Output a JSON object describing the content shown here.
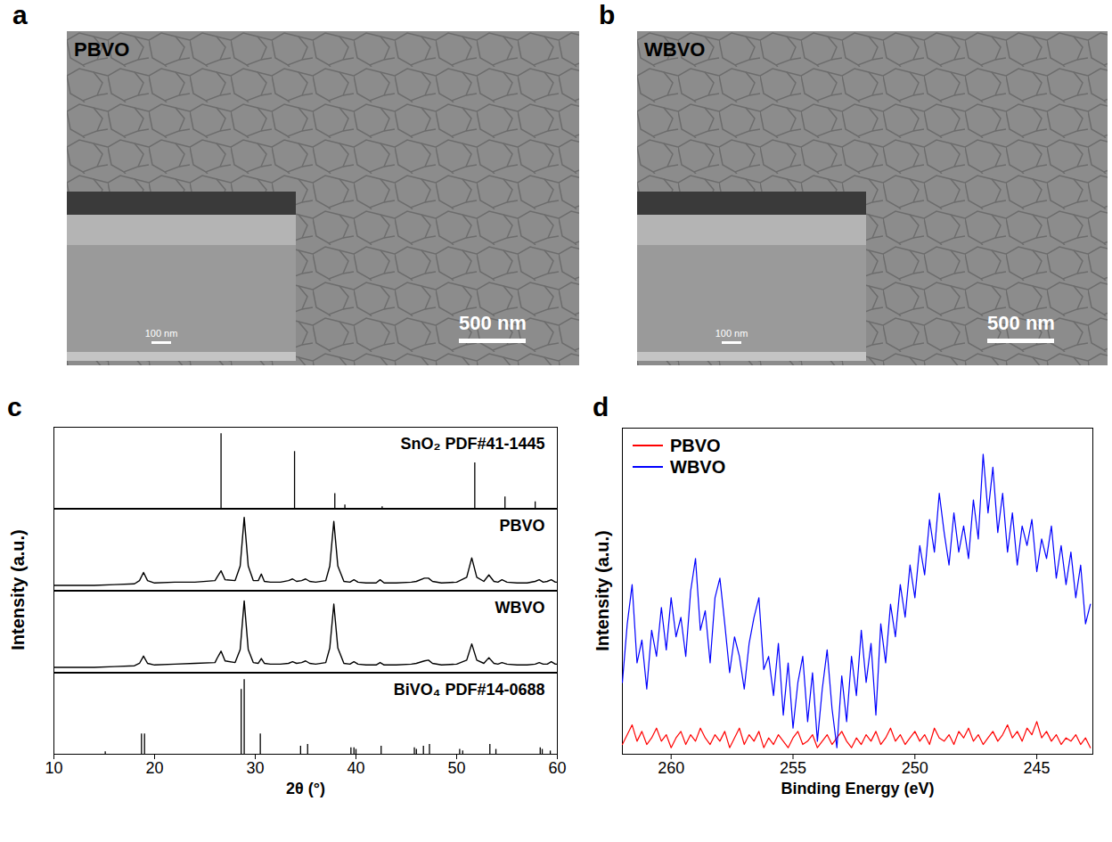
{
  "images": [
    {
      "panel": "a",
      "label": "PBVO",
      "scale_bar": "500 nm",
      "inset_scale_bar": "100 nm"
    },
    {
      "panel": "b",
      "label": "WBVO",
      "scale_bar": "500 nm",
      "inset_scale_bar": "100 nm"
    }
  ],
  "chart_data": [
    {
      "panel": "c",
      "type": "line",
      "xlabel": "2θ (°)",
      "ylabel": "Intensity (a.u.)",
      "xlim": [
        10,
        60
      ],
      "xticks": [
        10,
        20,
        30,
        40,
        50,
        60
      ],
      "ylim": [
        0,
        100
      ],
      "tick_labels": "x",
      "series": [
        {
          "name": "SnO₂ PDF#41-1445",
          "type": "bar",
          "color": "#000000",
          "x": [
            26.6,
            33.9,
            37.9,
            38.9,
            42.6,
            51.8,
            54.8,
            57.8
          ],
          "values": [
            92,
            70,
            18,
            4,
            2,
            56,
            14,
            8
          ]
        },
        {
          "name": "PBVO",
          "type": "line",
          "color": "#000000",
          "x": [
            10,
            12,
            14,
            16,
            18,
            18.5,
            18.9,
            19.3,
            20,
            22,
            24,
            26,
            26.2,
            26.6,
            27,
            28,
            28.5,
            28.9,
            29.3,
            29.8,
            30.3,
            30.6,
            30.9,
            31.5,
            32.5,
            33.3,
            33.7,
            34.1,
            34.6,
            35.0,
            35.4,
            36,
            37,
            37.4,
            37.8,
            38.2,
            38.8,
            39.4,
            39.8,
            40.2,
            41,
            42,
            42.4,
            42.8,
            44,
            45.5,
            46,
            46.8,
            47.2,
            47.6,
            48.5,
            50,
            51,
            51.5,
            52,
            52.7,
            53.2,
            53.7,
            54.1,
            54.5,
            55,
            56,
            57,
            57.8,
            58.2,
            58.6,
            59,
            59.4,
            59.8,
            60
          ],
          "values": [
            6,
            6,
            6,
            7,
            8,
            12,
            22,
            12,
            9,
            10,
            10,
            12,
            16,
            24,
            13,
            12,
            30,
            90,
            30,
            12,
            12,
            20,
            11,
            10,
            10,
            12,
            14,
            11,
            12,
            14,
            11,
            10,
            12,
            30,
            85,
            30,
            11,
            10,
            13,
            10,
            9,
            9,
            13,
            9,
            9,
            10,
            11,
            15,
            15,
            11,
            9,
            10,
            16,
            40,
            16,
            11,
            19,
            11,
            10,
            13,
            10,
            9,
            9,
            11,
            13,
            10,
            11,
            13,
            10,
            10
          ]
        },
        {
          "name": "WBVO",
          "type": "line",
          "color": "#000000",
          "x": [
            10,
            12,
            14,
            16,
            18,
            18.5,
            18.9,
            19.3,
            20,
            22,
            24,
            26,
            26.2,
            26.6,
            27,
            28,
            28.5,
            28.9,
            29.3,
            29.8,
            30.3,
            30.6,
            30.9,
            31.5,
            32.5,
            33.3,
            33.7,
            34.1,
            34.6,
            35.0,
            35.4,
            36,
            37,
            37.4,
            37.8,
            38.2,
            38.8,
            39.4,
            39.8,
            40.2,
            41,
            42,
            42.4,
            42.8,
            44,
            45.5,
            46,
            46.8,
            47.2,
            47.6,
            48.5,
            50,
            51,
            51.5,
            52,
            52.7,
            53.2,
            53.7,
            54.1,
            54.5,
            55,
            56,
            57,
            57.8,
            58.2,
            58.6,
            59,
            59.4,
            59.8,
            60
          ],
          "values": [
            6,
            6,
            6,
            7,
            8,
            11,
            20,
            11,
            9,
            10,
            11,
            12,
            17,
            26,
            14,
            12,
            28,
            88,
            28,
            12,
            11,
            17,
            11,
            10,
            10,
            11,
            13,
            11,
            12,
            14,
            11,
            10,
            12,
            30,
            84,
            30,
            11,
            10,
            13,
            10,
            9,
            9,
            12,
            9,
            9,
            10,
            11,
            14,
            15,
            11,
            9,
            10,
            15,
            35,
            15,
            11,
            18,
            11,
            10,
            12,
            10,
            9,
            9,
            10,
            12,
            10,
            10,
            13,
            10,
            10
          ]
        },
        {
          "name": "BiVO₄ PDF#14-0688",
          "type": "bar",
          "color": "#000000",
          "x": [
            15.1,
            18.7,
            19.0,
            28.6,
            28.9,
            30.5,
            34.5,
            35.2,
            39.5,
            39.8,
            40.0,
            42.5,
            45.8,
            46.0,
            46.7,
            47.3,
            50.3,
            50.6,
            53.3,
            53.9,
            58.3,
            58.5,
            59.3
          ],
          "values": [
            3,
            25,
            25,
            80,
            92,
            25,
            10,
            12,
            8,
            8,
            6,
            10,
            8,
            6,
            10,
            12,
            6,
            4,
            12,
            6,
            8,
            6,
            4
          ]
        }
      ]
    },
    {
      "panel": "d",
      "type": "line",
      "xlabel": "Binding Energy (eV)",
      "ylabel": "Intensity (a.u.)",
      "xlim": [
        262,
        242.7
      ],
      "xticks": [
        260,
        255,
        250,
        245
      ],
      "ylim": [
        0,
        100
      ],
      "tick_labels": "x",
      "legend": "top-left",
      "x": [
        262,
        261.8,
        261.6,
        261.4,
        261.2,
        261,
        260.8,
        260.6,
        260.4,
        260.2,
        260,
        259.8,
        259.6,
        259.4,
        259.2,
        259,
        258.8,
        258.6,
        258.4,
        258.2,
        258,
        257.8,
        257.6,
        257.4,
        257.2,
        257,
        256.8,
        256.6,
        256.4,
        256.2,
        256,
        255.8,
        255.6,
        255.4,
        255.2,
        255,
        254.8,
        254.6,
        254.4,
        254.2,
        254,
        253.8,
        253.6,
        253.4,
        253.2,
        253,
        252.8,
        252.6,
        252.4,
        252.2,
        252,
        251.8,
        251.6,
        251.4,
        251.2,
        251,
        250.8,
        250.6,
        250.4,
        250.2,
        250,
        249.8,
        249.6,
        249.4,
        249.2,
        249,
        248.8,
        248.6,
        248.4,
        248.2,
        248,
        247.8,
        247.6,
        247.4,
        247.2,
        247,
        246.8,
        246.6,
        246.4,
        246.2,
        246,
        245.8,
        245.6,
        245.4,
        245.2,
        245,
        244.8,
        244.6,
        244.4,
        244.2,
        244,
        243.8,
        243.6,
        243.4,
        243.2,
        243,
        242.8
      ],
      "series": [
        {
          "name": "PBVO",
          "color": "#ff0000",
          "values": [
            3,
            6,
            9,
            4,
            7,
            3,
            5,
            8,
            4,
            6,
            2,
            5,
            7,
            3,
            6,
            4,
            8,
            5,
            3,
            6,
            4,
            7,
            2,
            5,
            8,
            3,
            6,
            4,
            7,
            2,
            5,
            3,
            6,
            4,
            2,
            5,
            7,
            3,
            4,
            6,
            2,
            4,
            6,
            3,
            5,
            7,
            4,
            2,
            5,
            3,
            6,
            4,
            7,
            3,
            5,
            8,
            4,
            6,
            3,
            5,
            7,
            4,
            6,
            3,
            8,
            5,
            4,
            6,
            3,
            7,
            5,
            8,
            4,
            6,
            3,
            5,
            7,
            4,
            6,
            9,
            5,
            7,
            4,
            8,
            6,
            10,
            5,
            7,
            4,
            6,
            3,
            5,
            4,
            6,
            3,
            5,
            2
          ]
        },
        {
          "name": "WBVO",
          "color": "#0000ff",
          "values": [
            22,
            40,
            52,
            28,
            35,
            20,
            38,
            30,
            45,
            32,
            48,
            36,
            42,
            30,
            50,
            60,
            38,
            44,
            28,
            48,
            54,
            40,
            25,
            36,
            30,
            20,
            34,
            42,
            48,
            26,
            30,
            18,
            34,
            12,
            28,
            8,
            22,
            30,
            10,
            25,
            4,
            20,
            32,
            14,
            2,
            24,
            10,
            30,
            18,
            38,
            22,
            34,
            12,
            40,
            28,
            46,
            36,
            52,
            42,
            58,
            48,
            64,
            55,
            72,
            62,
            80,
            68,
            58,
            74,
            62,
            70,
            60,
            78,
            66,
            92,
            74,
            88,
            68,
            80,
            62,
            74,
            58,
            70,
            64,
            72,
            56,
            66,
            60,
            70,
            54,
            64,
            52,
            62,
            48,
            58,
            40,
            46
          ]
        }
      ]
    }
  ]
}
